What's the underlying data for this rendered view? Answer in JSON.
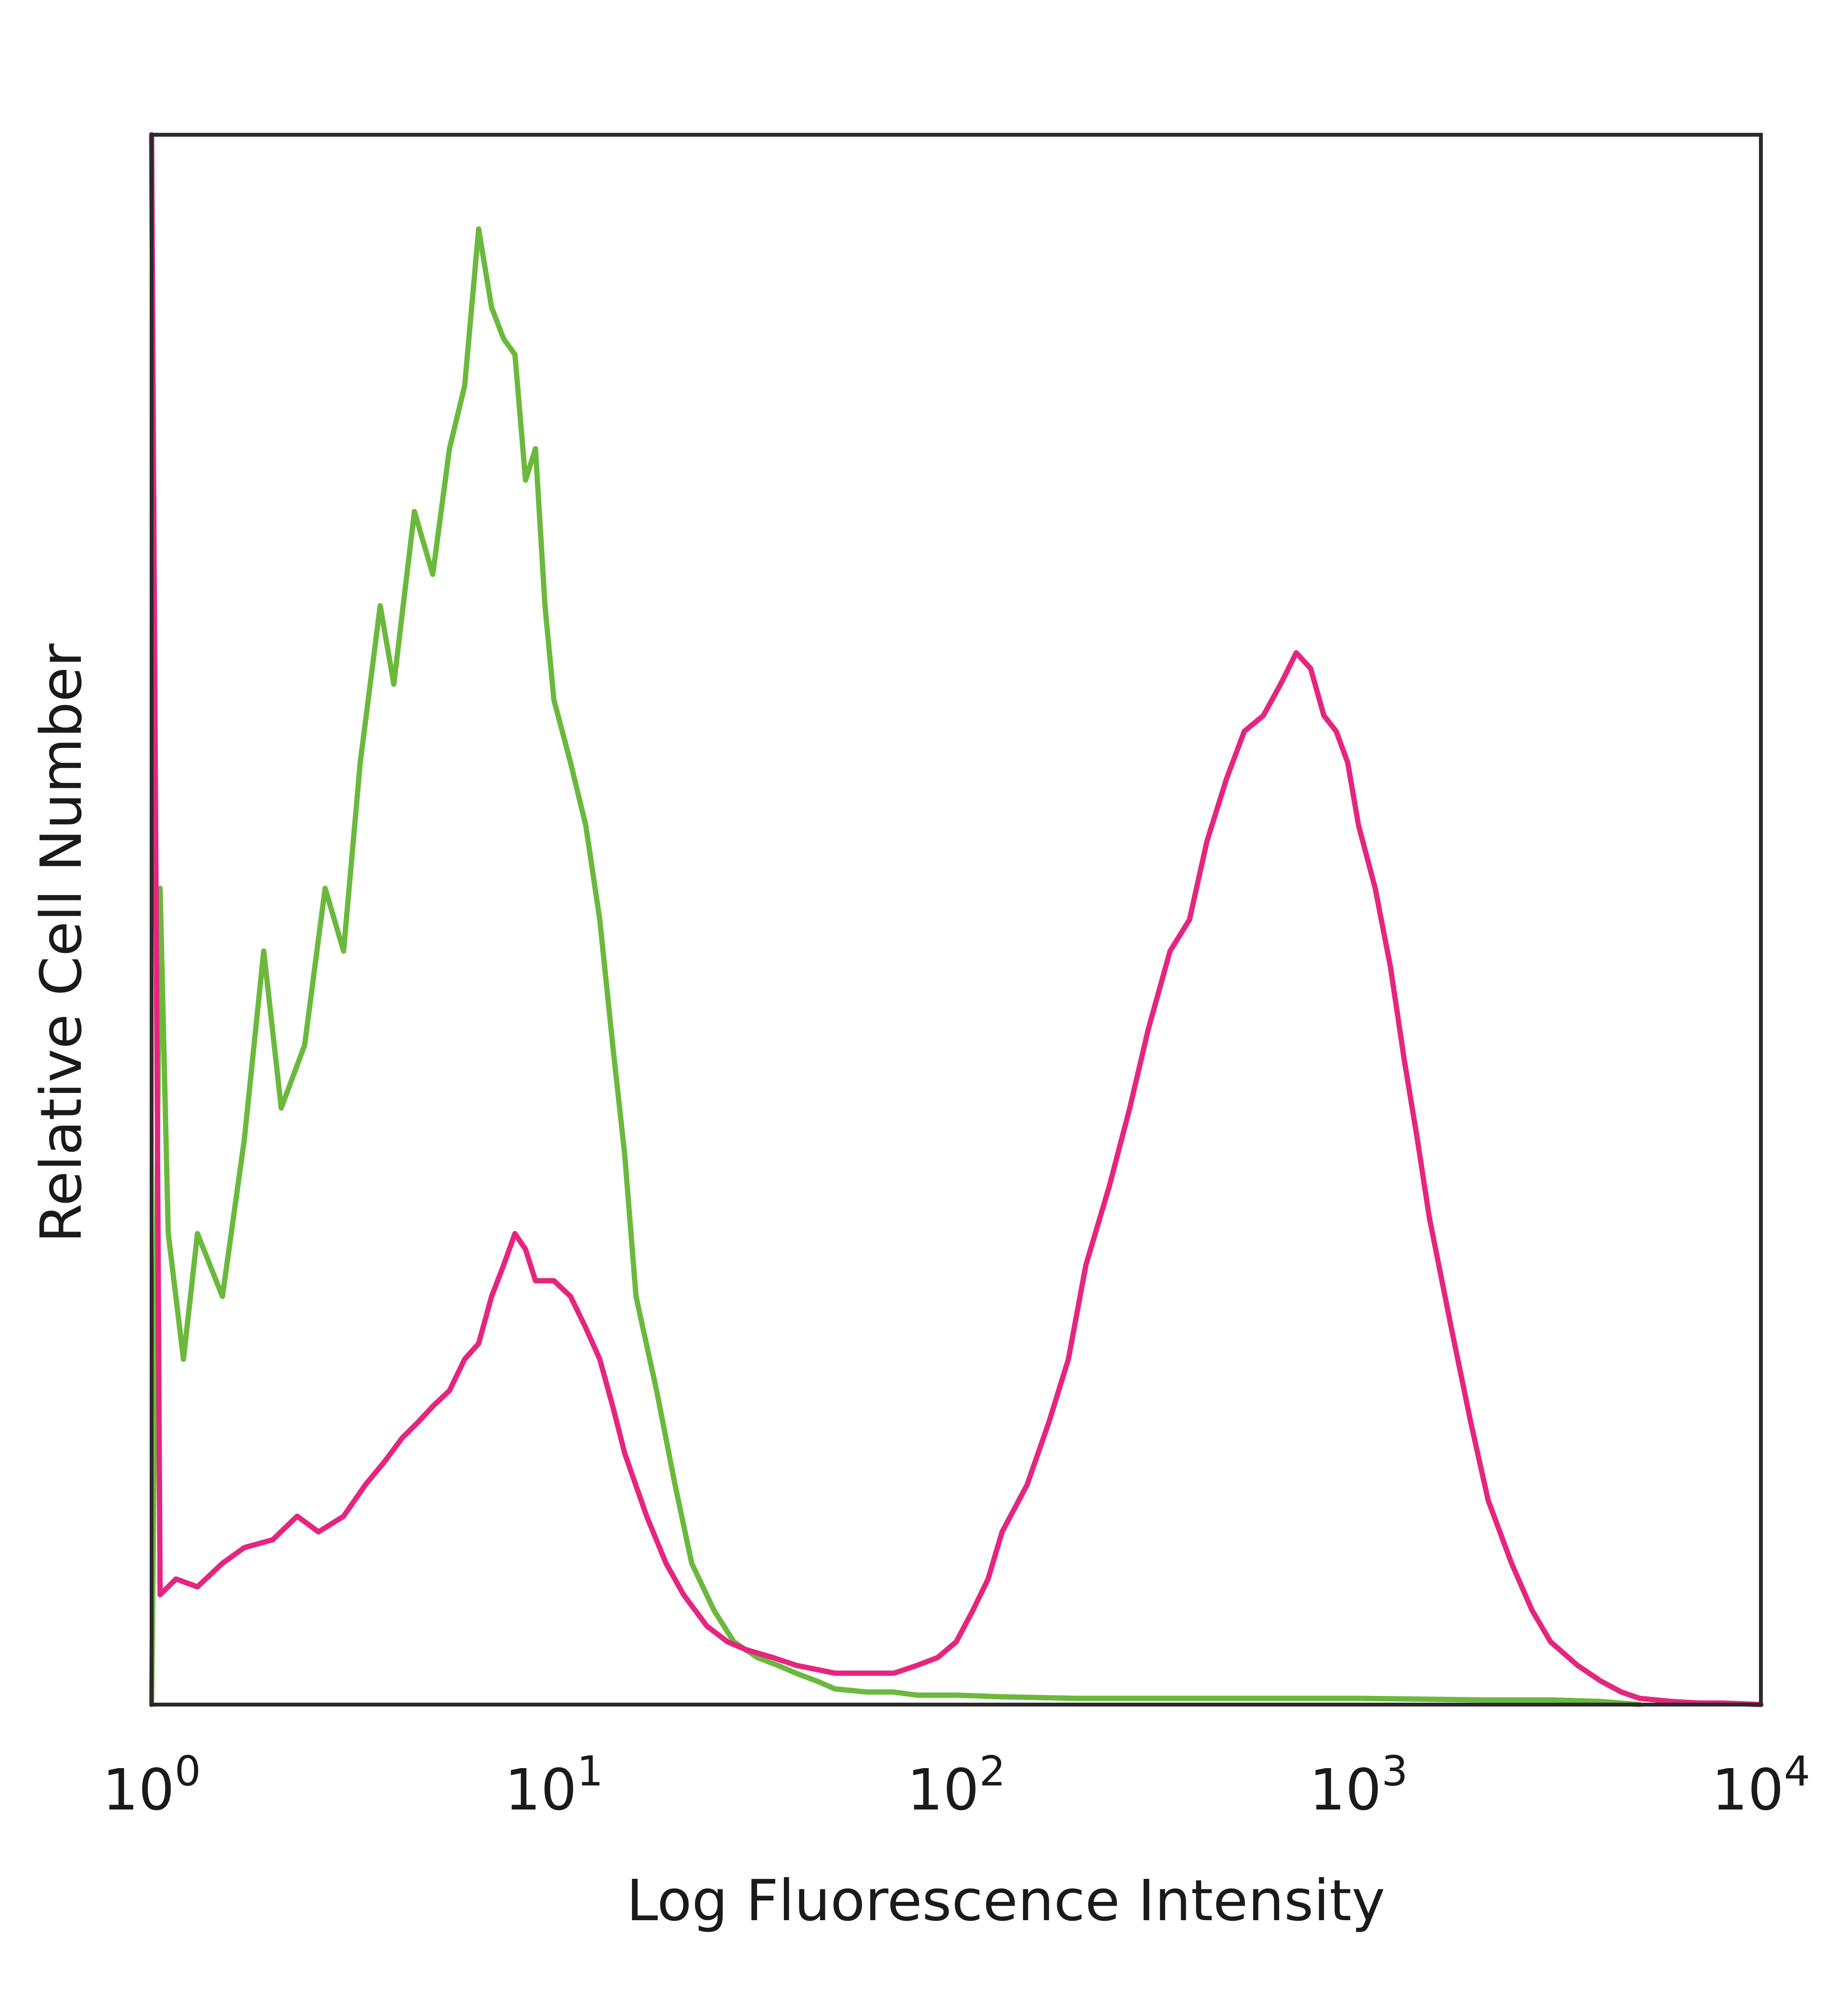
{
  "chart_data": {
    "type": "line",
    "title": "",
    "xlabel": "Log Fluorescence Intensity",
    "ylabel": "Relative Cell Number",
    "x_scale": "log",
    "xlim": [
      1,
      10000
    ],
    "ylim": [
      0,
      100
    ],
    "grid": false,
    "x_ticks": [
      {
        "value": 1,
        "base": "10",
        "exp": "0"
      },
      {
        "value": 10,
        "base": "10",
        "exp": "1"
      },
      {
        "value": 100,
        "base": "10",
        "exp": "2"
      },
      {
        "value": 1000,
        "base": "10",
        "exp": "3"
      },
      {
        "value": 10000,
        "base": "10",
        "exp": "4"
      }
    ],
    "series": [
      {
        "color": "#6ab93c",
        "x": [
          1.0,
          1.05,
          1.1,
          1.2,
          1.3,
          1.5,
          1.7,
          1.9,
          2.1,
          2.4,
          2.7,
          3.0,
          3.3,
          3.7,
          4.0,
          4.5,
          5.0,
          5.5,
          6.0,
          6.5,
          7.0,
          7.5,
          8.0,
          8.5,
          9.0,
          9.5,
          10,
          11,
          12,
          13,
          14,
          15,
          16,
          18,
          20,
          22,
          25,
          28,
          32,
          36,
          40,
          45,
          50,
          60,
          70,
          80,
          100,
          130,
          200,
          300,
          500,
          800,
          1000,
          2000,
          3000,
          4000,
          5000
        ],
        "y": [
          0,
          52,
          30,
          22,
          30,
          26,
          36,
          48,
          38,
          42,
          52,
          48,
          60,
          70,
          65,
          76,
          72,
          80,
          84,
          94,
          89,
          87,
          86,
          78,
          80,
          70,
          64,
          60,
          56,
          50,
          42,
          35,
          26,
          20,
          14,
          9,
          6,
          4,
          3,
          2.5,
          2,
          1.5,
          1,
          0.8,
          0.8,
          0.6,
          0.6,
          0.5,
          0.4,
          0.4,
          0.4,
          0.4,
          0.4,
          0.3,
          0.3,
          0.2,
          0
        ]
      },
      {
        "color": "#e5257f",
        "x": [
          1.0,
          1.05,
          1.15,
          1.3,
          1.5,
          1.7,
          2.0,
          2.3,
          2.6,
          3.0,
          3.4,
          3.8,
          4.2,
          4.6,
          5.0,
          5.5,
          6.0,
          6.5,
          7.0,
          7.5,
          8.0,
          8.5,
          9.0,
          9.5,
          10,
          11,
          12,
          13,
          14,
          15,
          17,
          19,
          21,
          24,
          27,
          30,
          35,
          40,
          50,
          60,
          70,
          80,
          90,
          100,
          110,
          120,
          130,
          150,
          170,
          190,
          210,
          240,
          270,
          300,
          340,
          380,
          420,
          470,
          520,
          580,
          640,
          700,
          760,
          820,
          880,
          940,
          1000,
          1100,
          1200,
          1300,
          1400,
          1500,
          1700,
          1900,
          2100,
          2400,
          2700,
          3000,
          3500,
          4000,
          4500,
          5000,
          6000,
          7000,
          8000,
          10000
        ],
        "y": [
          100,
          7,
          8,
          7.5,
          9,
          10,
          10.5,
          12,
          11,
          12,
          14,
          15.5,
          17,
          18,
          19,
          20,
          22,
          23,
          26,
          28,
          30,
          29,
          27,
          27,
          27,
          26,
          24,
          22,
          19,
          16,
          12,
          9,
          7,
          5,
          4,
          3.5,
          3,
          2.5,
          2,
          2,
          2,
          2.5,
          3,
          4,
          6,
          8,
          11,
          14,
          18,
          22,
          28,
          33,
          38,
          43,
          48,
          50,
          55,
          59,
          62,
          63,
          65,
          67,
          66,
          63,
          62,
          60,
          56,
          52,
          47,
          41,
          36,
          31,
          24,
          18,
          13,
          9,
          6,
          4,
          2.5,
          1.5,
          0.8,
          0.4,
          0.2,
          0.1,
          0.1,
          0
        ]
      }
    ]
  }
}
